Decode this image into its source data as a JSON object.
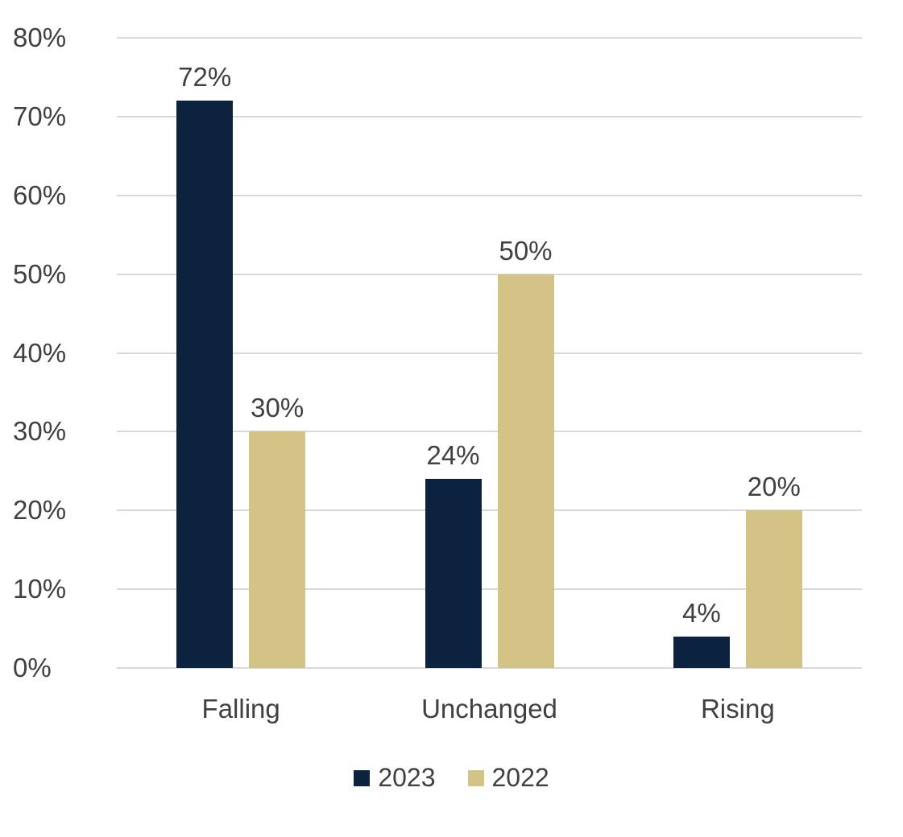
{
  "chart_data": {
    "type": "bar",
    "title": "",
    "xlabel": "",
    "ylabel": "",
    "categories": [
      "Falling",
      "Unchanged",
      "Rising"
    ],
    "series": [
      {
        "name": "2023",
        "color": "#0c2340",
        "values": [
          72,
          24,
          4
        ],
        "data_labels": [
          "72%",
          "24%",
          "4%"
        ]
      },
      {
        "name": "2022",
        "color": "#d3c387",
        "values": [
          30,
          50,
          20
        ],
        "data_labels": [
          "30%",
          "50%",
          "20%"
        ]
      }
    ],
    "ylim": [
      0,
      80
    ],
    "ytick_step": 10,
    "yticks": [
      "0%",
      "10%",
      "20%",
      "30%",
      "40%",
      "50%",
      "60%",
      "70%",
      "80%"
    ],
    "grid": true,
    "gridline_color": "#d9d9d9",
    "legend_position": "bottom",
    "text_color": "#404040",
    "background_color": "#ffffff"
  }
}
